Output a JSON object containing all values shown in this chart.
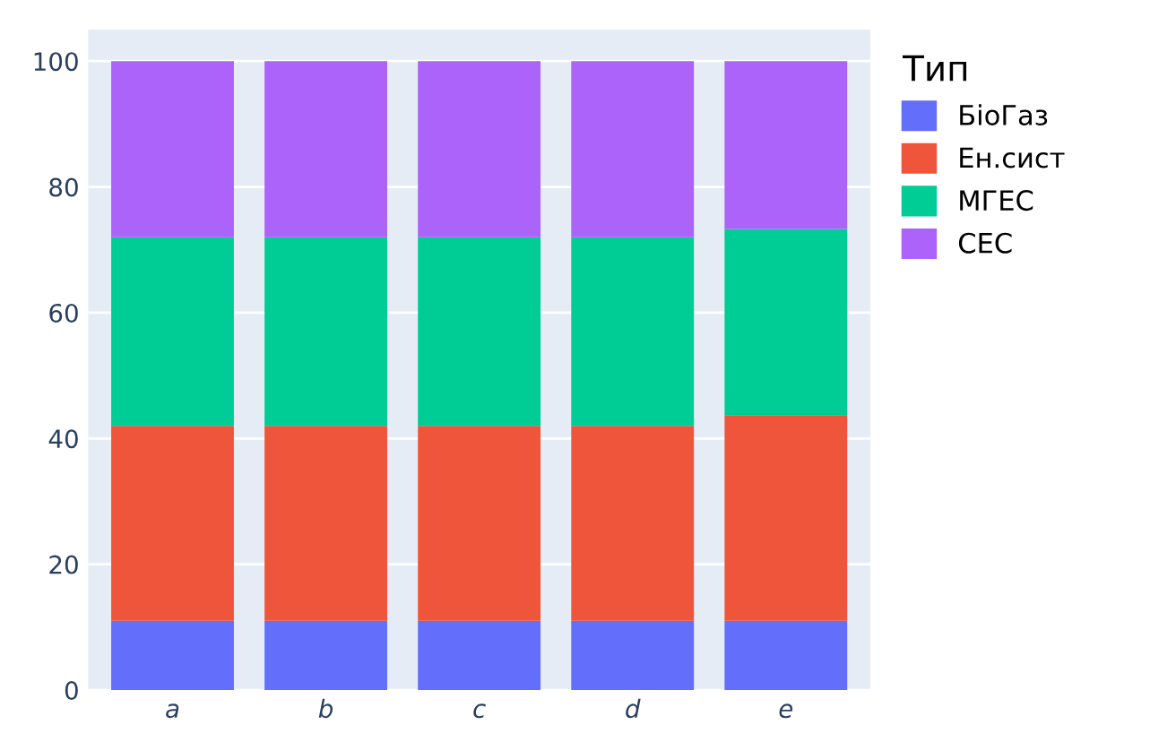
{
  "chart_data": {
    "type": "bar",
    "stacked": true,
    "legend_title": "Тип",
    "legend": "right",
    "grid": "y",
    "categories": [
      "a",
      "b",
      "c",
      "d",
      "e"
    ],
    "series": [
      {
        "name": "БіоГаз",
        "color": "#636efa",
        "values": [
          11,
          11,
          11,
          11,
          11
        ]
      },
      {
        "name": "Ен.сист",
        "color": "#ef553b",
        "values": [
          31,
          31,
          31,
          31,
          32.7
        ]
      },
      {
        "name": "МГЕС",
        "color": "#00cc96",
        "values": [
          30,
          30,
          30,
          30,
          29.6
        ]
      },
      {
        "name": "СЕС",
        "color": "#ab63fa",
        "values": [
          28,
          28,
          28,
          28,
          26.7
        ]
      }
    ],
    "ylim": [
      0,
      105
    ],
    "yticks": [
      0,
      20,
      40,
      60,
      80,
      100
    ]
  }
}
